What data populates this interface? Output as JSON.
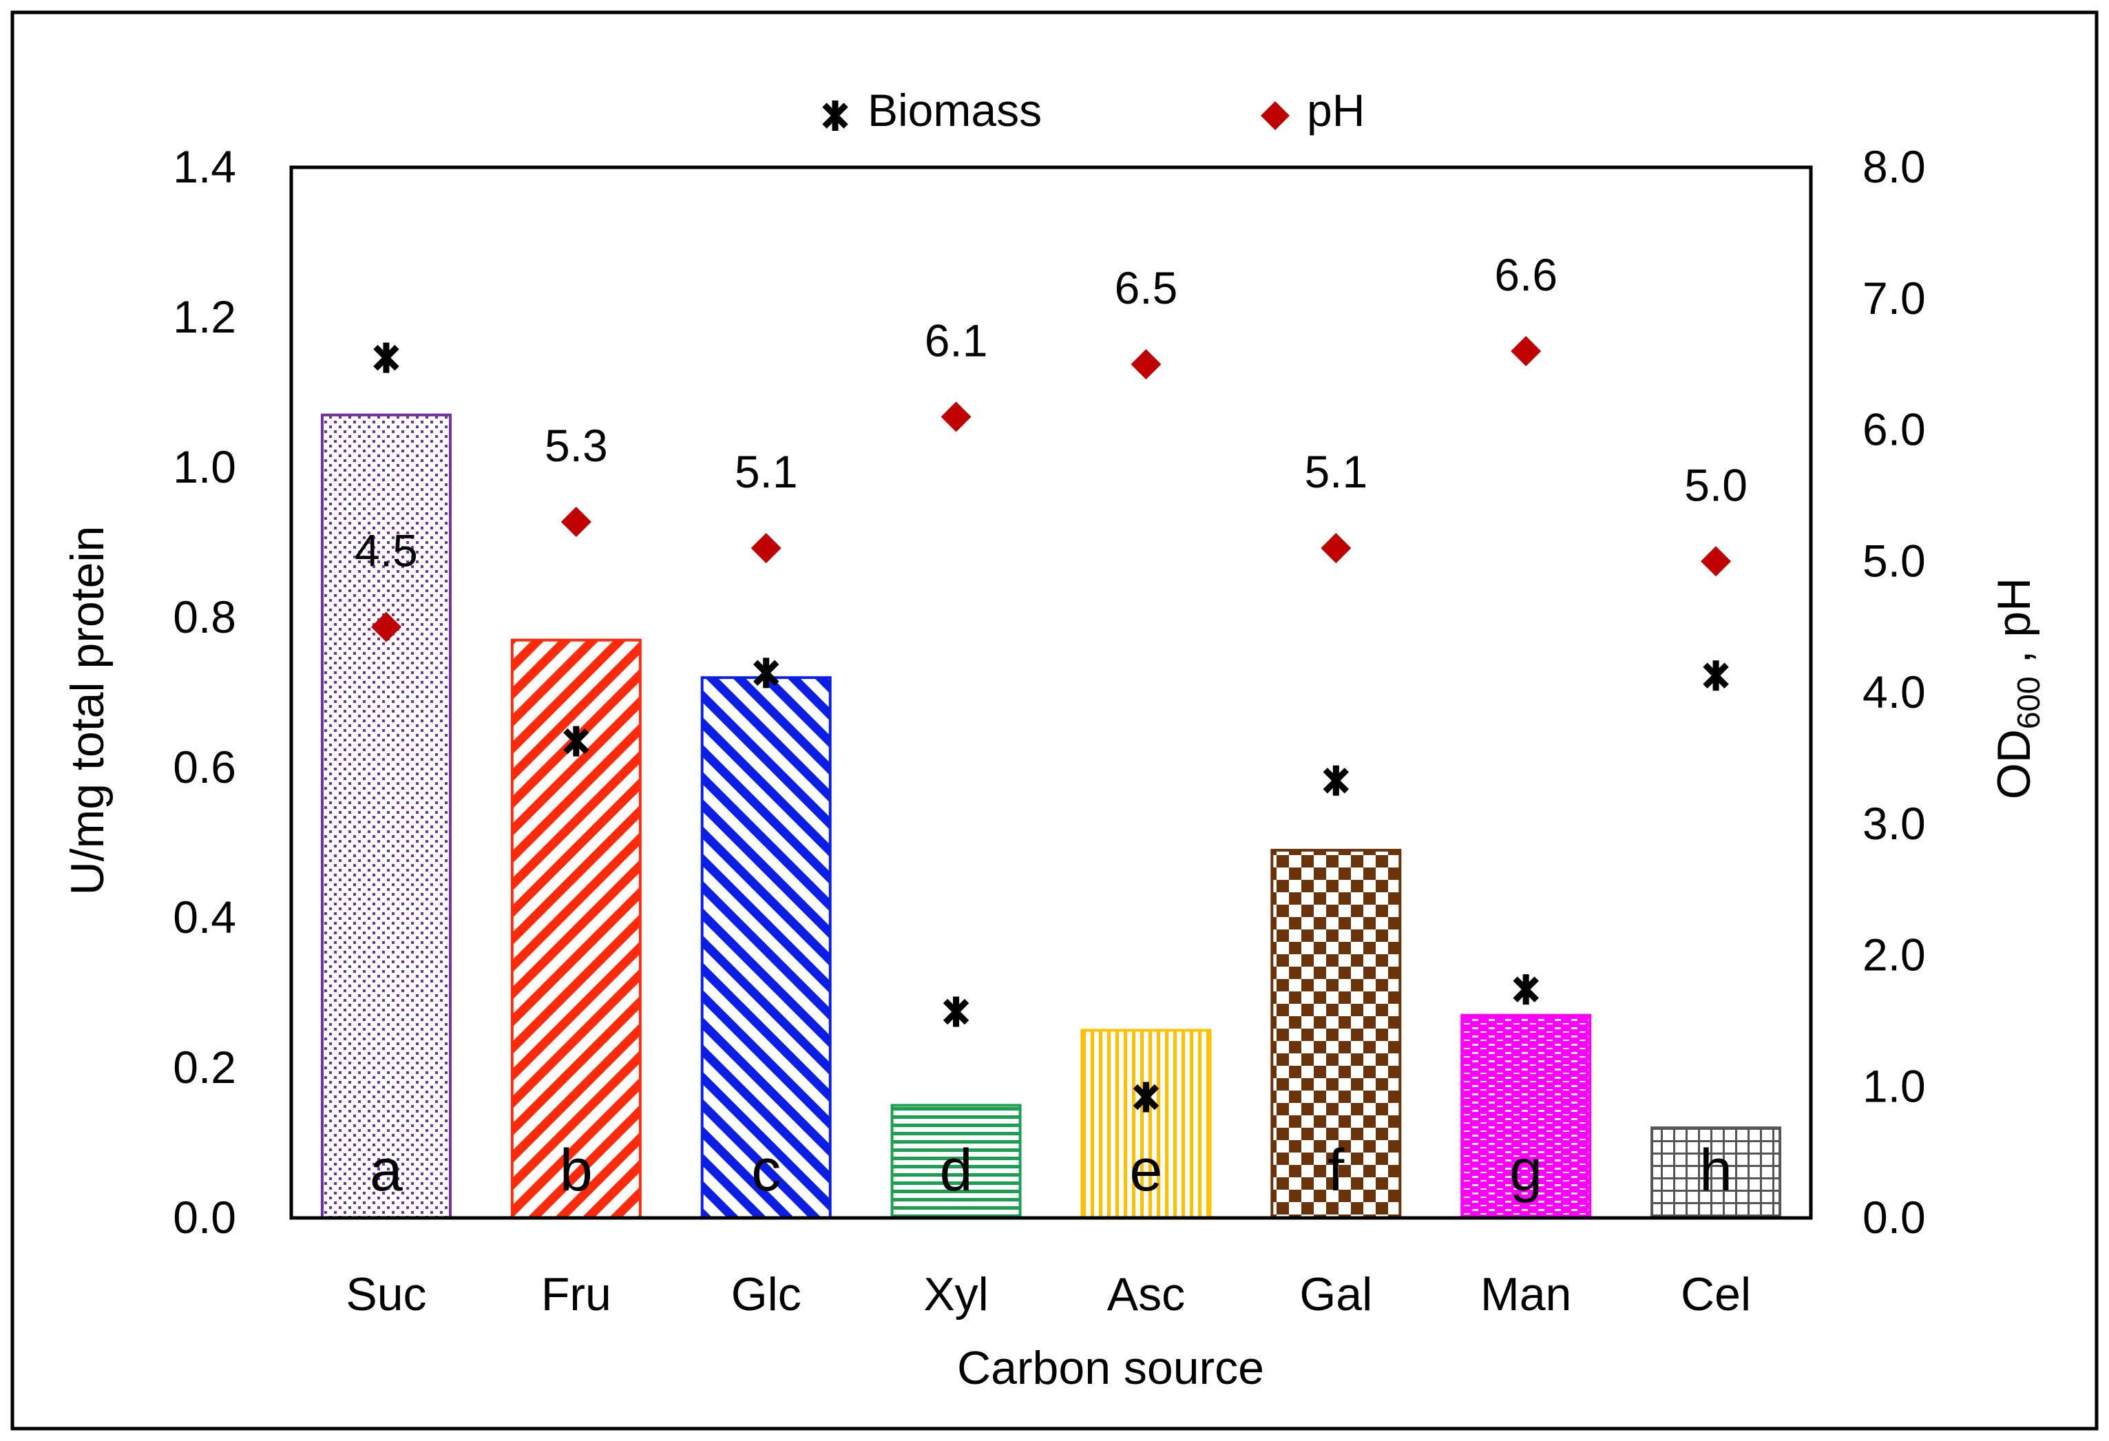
{
  "chart_data": {
    "type": "bar",
    "title": "",
    "xlabel": "Carbon source",
    "ylabel": "U/mg total protein",
    "y2label_main": "OD",
    "y2label_sub": "600",
    "y2label_tail": " , pH",
    "categories": [
      "Suc",
      "Fru",
      "Glc",
      "Xyl",
      "Asc",
      "Gal",
      "Man",
      "Cel"
    ],
    "ylim": [
      0,
      1.4
    ],
    "y2lim": [
      0,
      8
    ],
    "yticks": [
      "0.0",
      "0.2",
      "0.4",
      "0.6",
      "0.8",
      "1.0",
      "1.2",
      "1.4"
    ],
    "y2ticks": [
      "0.0",
      "1.0",
      "2.0",
      "3.0",
      "4.0",
      "5.0",
      "6.0",
      "7.0",
      "8.0"
    ],
    "legend": {
      "position": "top-center",
      "biomass_label": "Biomass",
      "ph_label": "pH"
    },
    "series": [
      {
        "name": "U/mg total protein",
        "axis": "left",
        "kind": "bar",
        "values": [
          1.07,
          0.77,
          0.72,
          0.15,
          0.25,
          0.49,
          0.27,
          0.12
        ],
        "group_letters": [
          "a",
          "b",
          "c",
          "d",
          "e",
          "f",
          "g",
          "h"
        ],
        "colors": [
          "#7030a0",
          "#ff2a0a",
          "#0a1ee6",
          "#1aa050",
          "#ffc000",
          "#6b3309",
          "#ff00ff",
          "#555555"
        ],
        "patterns": [
          "dots",
          "diag-down",
          "diag-up",
          "horizontal",
          "vertical",
          "checker",
          "dashes",
          "grid"
        ]
      },
      {
        "name": "Biomass",
        "axis": "right",
        "kind": "marker",
        "values": [
          6.55,
          3.63,
          4.15,
          1.57,
          0.92,
          3.33,
          1.74,
          4.13
        ],
        "color": "#000000"
      },
      {
        "name": "pH",
        "axis": "right",
        "kind": "marker",
        "values": [
          4.5,
          5.3,
          5.1,
          6.1,
          6.5,
          5.1,
          6.6,
          5.0
        ],
        "labels": [
          "4.5",
          "5.3",
          "5.1",
          "6.1",
          "6.5",
          "5.1",
          "6.6",
          "5.0"
        ],
        "color": "#c00000"
      }
    ]
  }
}
